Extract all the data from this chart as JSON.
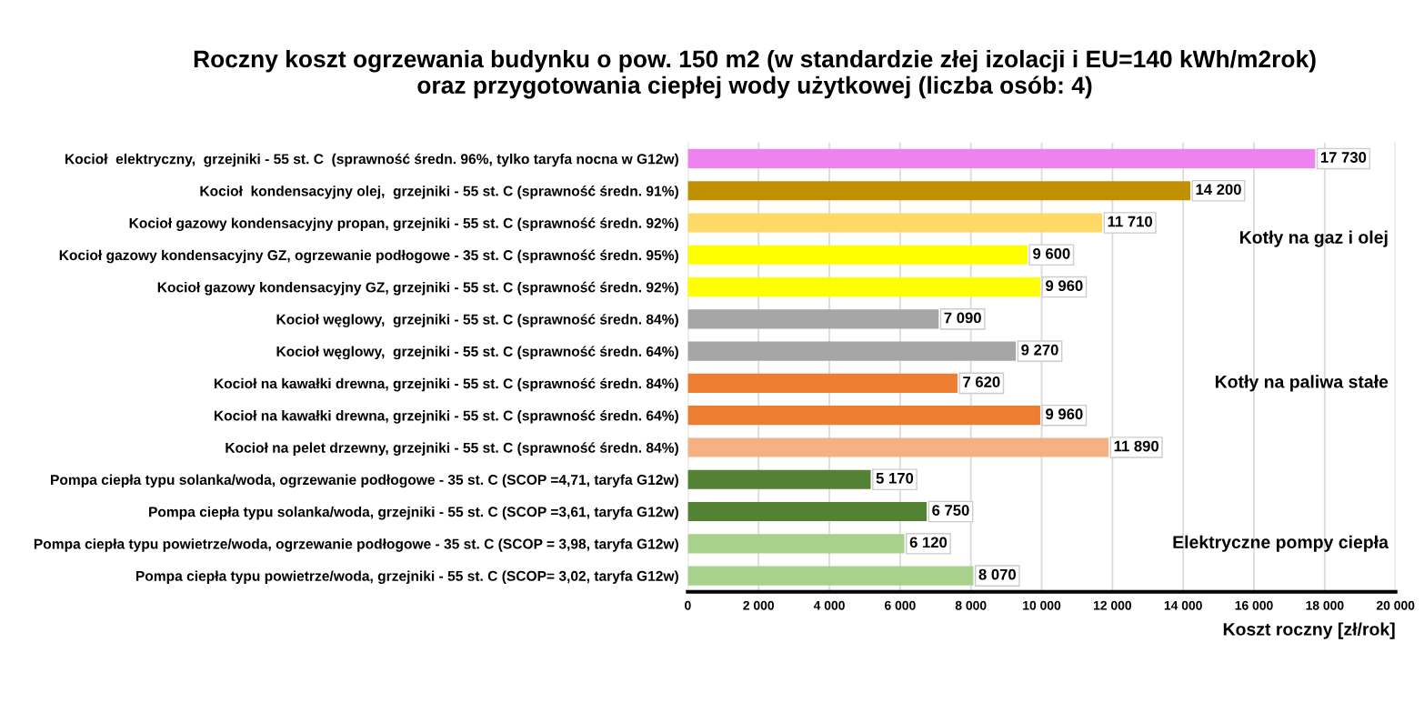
{
  "chart_data": {
    "type": "bar",
    "orientation": "horizontal",
    "title": "Roczny koszt ogrzewania budynku o pow. 150 m2 (w standardzie złej izolacji i EU=140 kWh/m2rok)\noraz przygotowania ciepłej wody użytkowej (liczba osób: 4)",
    "xlabel": "Koszt roczny [zł/rok]",
    "categories": [
      "Kocioł  elektryczny,  grzejniki - 55 st. C  (sprawność średn. 96%, tylko taryfa nocna w G12w)",
      "Kocioł  kondensacyjny olej,  grzejniki - 55 st. C (sprawność średn. 91%)",
      "Kocioł gazowy kondensacyjny propan, grzejniki - 55 st. C (sprawność średn. 92%)",
      "Kocioł gazowy kondensacyjny GZ, ogrzewanie podłogowe - 35 st. C (sprawność średn. 95%)",
      "Kocioł gazowy kondensacyjny GZ, grzejniki - 55 st. C (sprawność średn. 92%)",
      "Kocioł węglowy,  grzejniki - 55 st. C (sprawność średn. 84%)",
      "Kocioł węglowy,  grzejniki - 55 st. C (sprawność średn. 64%)",
      "Kocioł na kawałki drewna, grzejniki - 55 st. C (sprawność średn. 84%)",
      "Kocioł na kawałki drewna, grzejniki - 55 st. C (sprawność średn. 64%)",
      "Kocioł na pelet drzewny, grzejniki - 55 st. C (sprawność średn. 84%)",
      "Pompa ciepła typu solanka/woda, ogrzewanie podłogowe - 35 st. C (SCOP =4,71, taryfa G12w)",
      "Pompa ciepła typu solanka/woda, grzejniki - 55 st. C (SCOP =3,61, taryfa G12w)",
      "Pompa ciepła typu powietrze/woda, ogrzewanie podłogowe - 35 st. C (SCOP = 3,98, taryfa G12w)",
      "Pompa ciepła typu powietrze/woda, grzejniki - 55 st. C (SCOP= 3,02, taryfa G12w)"
    ],
    "values": [
      17730,
      14200,
      11710,
      9600,
      9960,
      7090,
      9270,
      7620,
      9960,
      11890,
      5170,
      6750,
      6120,
      8070
    ],
    "value_labels": [
      "17 730",
      "14 200",
      "11 710",
      "9 600",
      "9 960",
      "7 090",
      "9 270",
      "7 620",
      "9 960",
      "11 890",
      "5 170",
      "6 750",
      "6 120",
      "8 070"
    ],
    "colors": [
      "#ee82ee",
      "#bf9000",
      "#ffd966",
      "#ffff00",
      "#ffff00",
      "#a6a6a6",
      "#a6a6a6",
      "#ed7d31",
      "#ed7d31",
      "#f4b183",
      "#548235",
      "#548235",
      "#a9d18e",
      "#a9d18e"
    ],
    "xlim": [
      0,
      20000
    ],
    "xticks": [
      0,
      {
        "value": 2000,
        "label": "2 000"
      },
      {
        "value": 4000,
        "label": "4 000"
      },
      {
        "value": 6000,
        "label": "6 000"
      },
      {
        "value": 8000,
        "label": "8 000"
      },
      {
        "value": 10000,
        "label": "10 000"
      },
      {
        "value": 12000,
        "label": "12 000"
      },
      {
        "value": 14000,
        "label": "14 000"
      },
      {
        "value": 16000,
        "label": "16 000"
      },
      {
        "value": 18000,
        "label": "18 000"
      },
      {
        "value": 20000,
        "label": "20 000"
      }
    ],
    "grid": "x",
    "annotations": [
      "Kotły na gaz i olej",
      "Kotły na paliwa stałe",
      "Elektryczne pompy ciepła"
    ]
  }
}
